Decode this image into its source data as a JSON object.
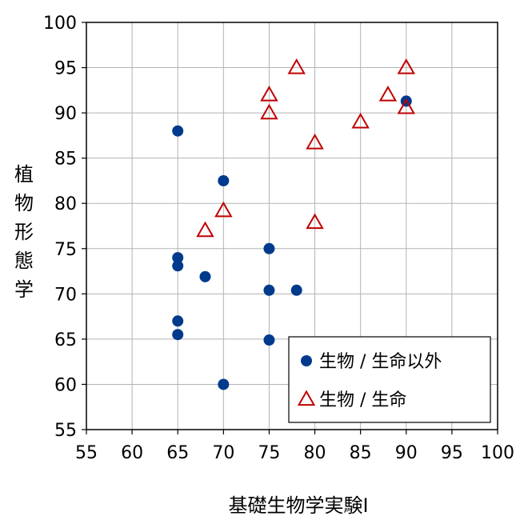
{
  "chart_data": {
    "type": "scatter",
    "title": "",
    "xlabel": "基礎生物学実験I",
    "ylabel": "植物形態学",
    "xlim": [
      55,
      100
    ],
    "ylim": [
      55,
      100
    ],
    "xticks": [
      55,
      60,
      65,
      70,
      75,
      80,
      85,
      90,
      95,
      100
    ],
    "yticks": [
      55,
      60,
      65,
      70,
      75,
      80,
      85,
      90,
      95,
      100
    ],
    "grid": true,
    "legend_position": "bottom-right",
    "series": [
      {
        "name": "生物 / 生命以外",
        "marker": "filled-circle",
        "color": "#003a8c",
        "points": [
          [
            65,
            88
          ],
          [
            70,
            82.5
          ],
          [
            65,
            74
          ],
          [
            65,
            73.1
          ],
          [
            68,
            71.9
          ],
          [
            75,
            75
          ],
          [
            75,
            70.4
          ],
          [
            78,
            70.4
          ],
          [
            65,
            67
          ],
          [
            65,
            65.5
          ],
          [
            75,
            64.9
          ],
          [
            70,
            60
          ],
          [
            90,
            91.3
          ]
        ]
      },
      {
        "name": "生物 / 生命",
        "marker": "open-triangle",
        "color": "#c00000",
        "points": [
          [
            78,
            95
          ],
          [
            90,
            95
          ],
          [
            75,
            92
          ],
          [
            88,
            92
          ],
          [
            75,
            90
          ],
          [
            90,
            90.6
          ],
          [
            85,
            89
          ],
          [
            80,
            86.7
          ],
          [
            70,
            79.2
          ],
          [
            68,
            77
          ],
          [
            80,
            77.9
          ]
        ]
      }
    ]
  }
}
